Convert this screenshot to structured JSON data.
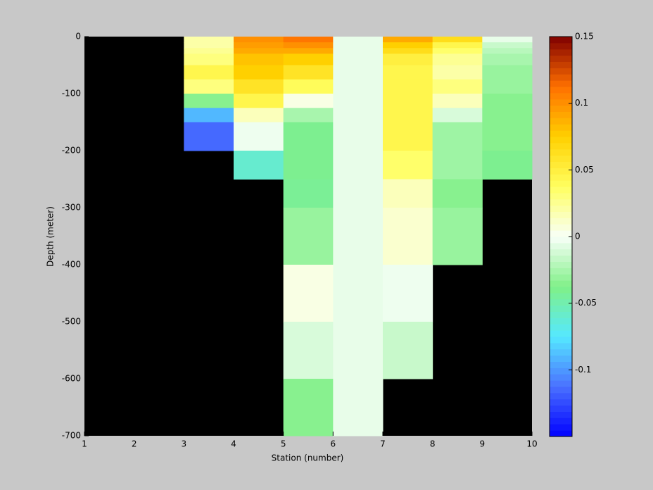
{
  "chart_data": {
    "type": "heatmap",
    "xlabel": "Station (number)",
    "ylabel": "Depth (meter)",
    "x": [
      1,
      2,
      3,
      4,
      5,
      6,
      7,
      8,
      9,
      10
    ],
    "y": [
      0,
      -10,
      -20,
      -30,
      -50,
      -75,
      -100,
      -125,
      -150,
      -200,
      -250,
      -300,
      -400,
      -500,
      -600,
      -700
    ],
    "z": [
      [
        null,
        null,
        0.02,
        0.1,
        0.11,
        -0.005,
        0.09,
        0.065,
        -0.005
      ],
      [
        null,
        null,
        0.02,
        0.095,
        0.1,
        -0.005,
        0.075,
        0.045,
        -0.015
      ],
      [
        null,
        null,
        0.025,
        0.09,
        0.09,
        -0.005,
        0.065,
        0.035,
        -0.02
      ],
      [
        null,
        null,
        0.03,
        0.08,
        0.075,
        -0.005,
        0.05,
        0.025,
        -0.025
      ],
      [
        null,
        null,
        0.045,
        0.075,
        0.06,
        -0.005,
        0.045,
        0.02,
        -0.03
      ],
      [
        null,
        null,
        0.03,
        0.06,
        0.04,
        -0.005,
        0.045,
        0.03,
        -0.03
      ],
      [
        null,
        null,
        -0.035,
        0.045,
        0.005,
        -0.005,
        0.045,
        0.015,
        -0.035
      ],
      [
        null,
        null,
        -0.09,
        0.015,
        -0.025,
        -0.005,
        0.045,
        -0.01,
        -0.035
      ],
      [
        null,
        null,
        -0.115,
        -0.003,
        -0.04,
        -0.005,
        0.045,
        -0.028,
        -0.035
      ],
      [
        null,
        null,
        null,
        -0.06,
        -0.04,
        -0.005,
        0.035,
        -0.028,
        -0.04
      ],
      [
        null,
        null,
        null,
        null,
        -0.042,
        -0.005,
        0.015,
        -0.035,
        null
      ],
      [
        null,
        null,
        null,
        null,
        -0.03,
        -0.005,
        0.01,
        -0.03,
        null
      ],
      [
        null,
        null,
        null,
        null,
        0.005,
        -0.005,
        -0.003,
        null,
        null
      ],
      [
        null,
        null,
        null,
        null,
        -0.01,
        -0.005,
        -0.015,
        null,
        null
      ],
      [
        null,
        null,
        null,
        null,
        -0.035,
        -0.005,
        null,
        null,
        null
      ]
    ],
    "xlim": [
      1,
      10
    ],
    "xticks": [
      1,
      2,
      3,
      4,
      5,
      6,
      7,
      8,
      9,
      10
    ],
    "ylim": [
      -700,
      0
    ],
    "yticks": [
      0,
      -100,
      -200,
      -300,
      -400,
      -500,
      -600,
      -700
    ],
    "clim": [
      -0.15,
      0.15
    ],
    "cticks": [
      -0.1,
      -0.05,
      0,
      0.05,
      0.1,
      0.15
    ],
    "colormap": [
      "#0000ff",
      "#4a70ff",
      "#55e8ff",
      "#80f088",
      "#f8fff8",
      "#ffff60",
      "#ffd000",
      "#ff7000",
      "#800000"
    ],
    "background": "#000000"
  }
}
